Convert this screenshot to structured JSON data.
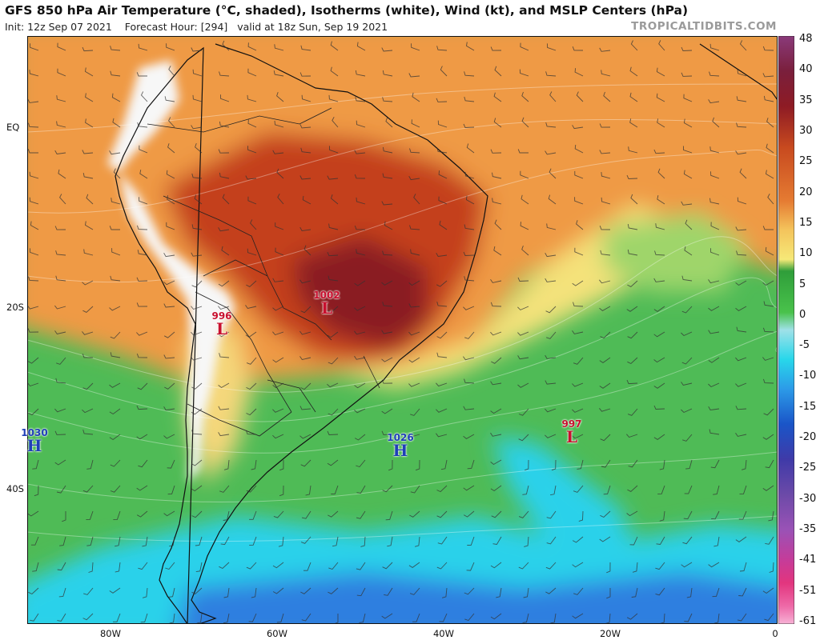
{
  "header": {
    "title": "GFS 850 hPa Air Temperature (°C, shaded), Isotherms (white), Wind (kt), and MSLP Centers (hPa)",
    "init_label": "Init: 12z Sep 07 2021",
    "forecast_label": "Forecast Hour: [294]",
    "valid_label": "valid at 18z Sun, Sep 19 2021",
    "brand": "TROPICALTIDBITS.COM"
  },
  "axes": {
    "lat_labels": [
      "EQ",
      "20S",
      "40S"
    ],
    "lon_labels": [
      "80W",
      "60W",
      "40W",
      "20W",
      "0"
    ]
  },
  "colorbar": {
    "ticks": [
      "48",
      "40",
      "35",
      "30",
      "25",
      "20",
      "15",
      "10",
      "5",
      "0",
      "-5",
      "-10",
      "-15",
      "-20",
      "-25",
      "-30",
      "-35",
      "-41",
      "-51",
      "-61"
    ],
    "colors": {
      "48": "#8a3a7a",
      "40": "#7a1f3c",
      "35": "#8e1b24",
      "30": "#a52a1a",
      "25": "#c84a1f",
      "20": "#e57b32",
      "15": "#f4c45c",
      "10": "#f6e978",
      "5": "#2f9e3a",
      "0": "#49c24b",
      "-5": "#28d7ea",
      "-10": "#2c9be8",
      "-15": "#1a55c8",
      "-20": "#3f3aa8",
      "-25": "#6c4aa8",
      "-30": "#9a52b6",
      "-35": "#c43c9a",
      "-41": "#e2357e",
      "-51": "#ee6aa8",
      "-61": "#f7b2d6"
    }
  },
  "pressure_centers": [
    {
      "type": "L",
      "value": "1002",
      "color": "#c8102e"
    },
    {
      "type": "L",
      "value": "996",
      "color": "#c8102e"
    },
    {
      "type": "L",
      "value": "997",
      "color": "#c8102e"
    },
    {
      "type": "H",
      "value": "1030",
      "color": "#1f3fb8"
    },
    {
      "type": "H",
      "value": "1026",
      "color": "#1f3fb8"
    }
  ]
}
